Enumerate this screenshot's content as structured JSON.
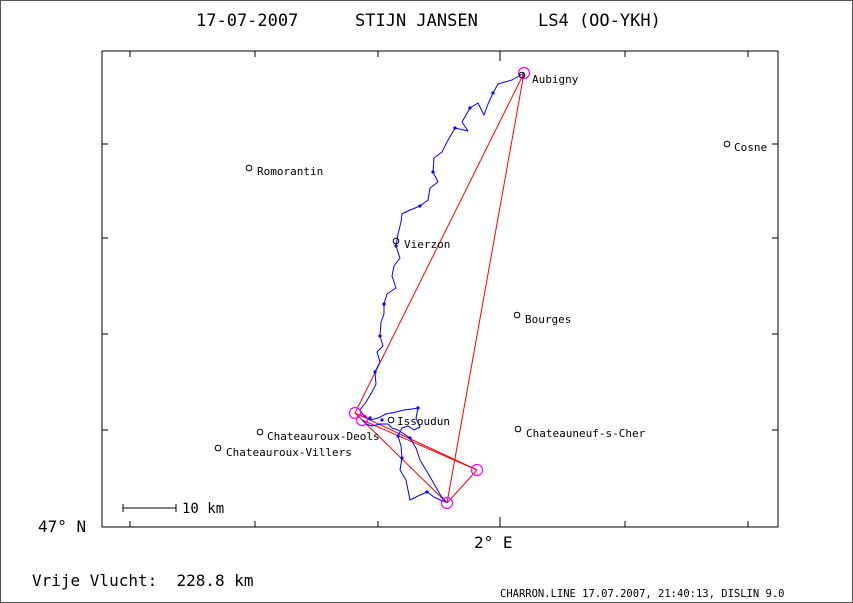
{
  "header": {
    "date": "17-07-2007",
    "pilot": "STIJN JANSEN",
    "aircraft": "LS4 (OO-YKH)"
  },
  "axes": {
    "lat_label": "47° N",
    "lon_label": "2° E"
  },
  "scale_bar": {
    "label": "10 km"
  },
  "towns": [
    {
      "name": "Aubigny"
    },
    {
      "name": "Cosne"
    },
    {
      "name": "Romorantin"
    },
    {
      "name": "Vierzon"
    },
    {
      "name": "Bourges"
    },
    {
      "name": "Issoudun"
    },
    {
      "name": "Chateauroux-Deols"
    },
    {
      "name": "Chateauroux-Villers"
    },
    {
      "name": "Chateauneuf-s-Cher"
    }
  ],
  "task": {
    "turnpoint_count": 5
  },
  "footer": {
    "distance_text": "Vrije Vlucht:  228.8 km",
    "software_text": "CHARRON.LINE 17.07.2007, 21:40:13, DISLIN 9.0"
  },
  "colors": {
    "track": "#0000ff",
    "task_line": "#ff0000",
    "turnpoint": "#ff00ff",
    "frame": "#000000"
  }
}
